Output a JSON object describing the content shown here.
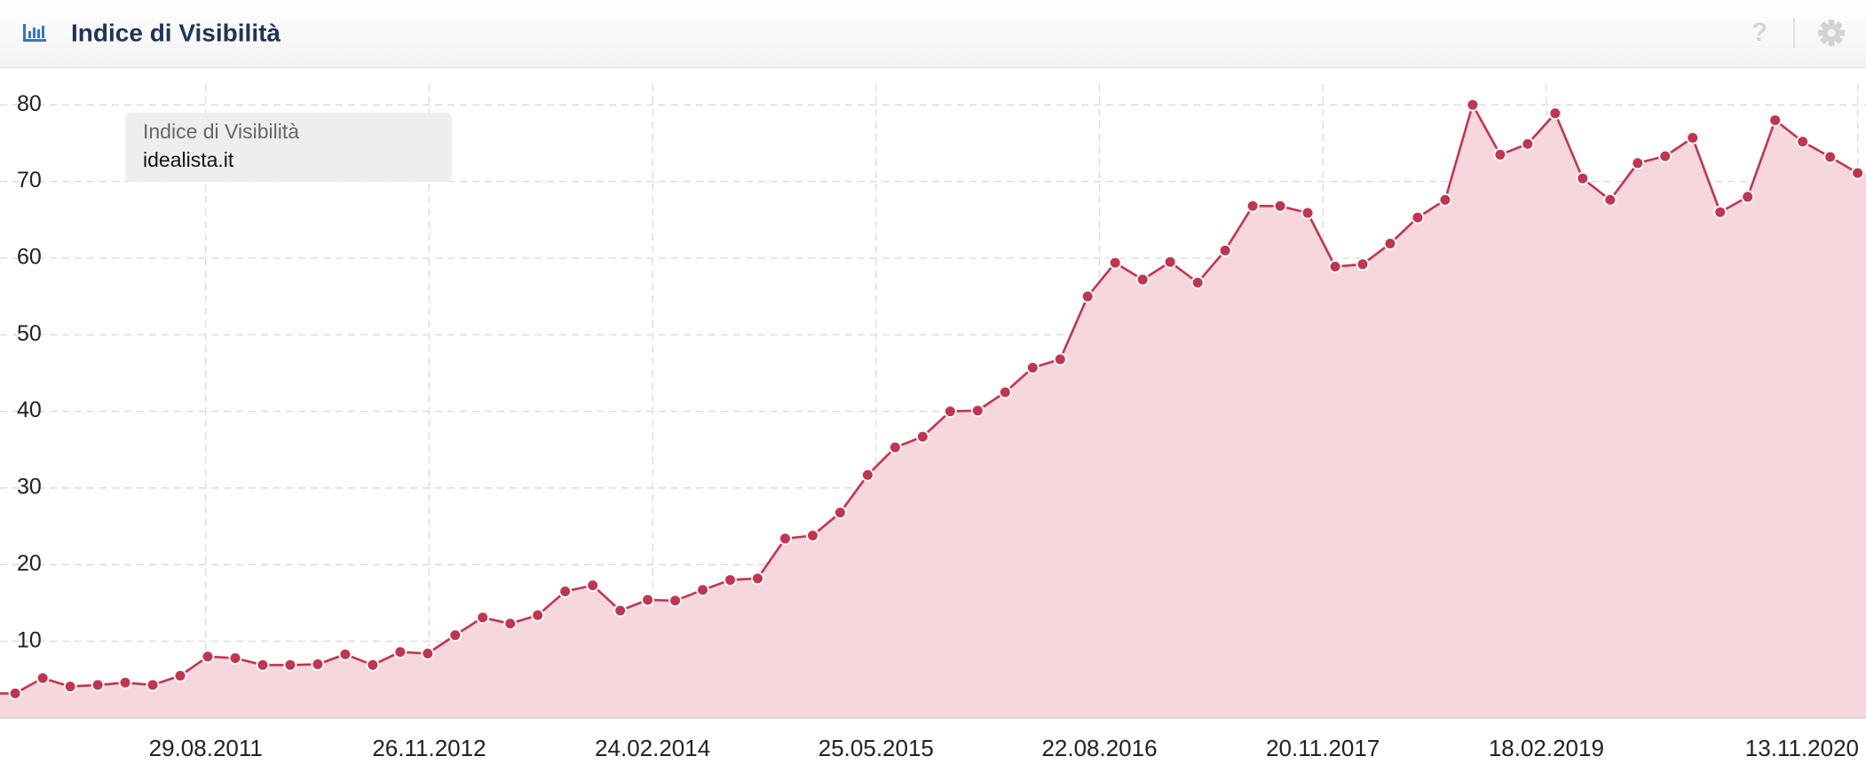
{
  "chart_data": {
    "type": "line",
    "title": "Indice di Visibilità",
    "help": "?",
    "x": [
      "06.08.2010",
      "01.10.2010",
      "26.11.2010",
      "21.01.2011",
      "18.03.2011",
      "13.05.2011",
      "08.07.2011",
      "02.09.2011",
      "28.10.2011",
      "23.12.2011",
      "17.02.2012",
      "13.04.2012",
      "08.06.2012",
      "03.08.2012",
      "28.09.2012",
      "23.11.2012",
      "18.01.2013",
      "15.03.2013",
      "10.05.2013",
      "05.07.2013",
      "30.08.2013",
      "25.10.2013",
      "20.12.2013",
      "14.02.2014",
      "11.04.2014",
      "06.06.2014",
      "01.08.2014",
      "26.09.2014",
      "21.11.2014",
      "16.01.2015",
      "13.03.2015",
      "08.05.2015",
      "03.07.2015",
      "28.08.2015",
      "23.10.2015",
      "18.12.2015",
      "12.02.2016",
      "08.04.2016",
      "03.06.2016",
      "29.07.2016",
      "23.09.2016",
      "18.11.2016",
      "13.01.2017",
      "10.03.2017",
      "05.05.2017",
      "30.06.2017",
      "25.08.2017",
      "20.10.2017",
      "15.12.2017",
      "09.02.2018",
      "06.04.2018",
      "01.06.2018",
      "27.07.2018",
      "21.09.2018",
      "16.11.2018",
      "11.01.2019",
      "08.03.2019",
      "03.05.2019",
      "28.06.2019",
      "23.08.2019",
      "18.10.2019",
      "13.12.2019",
      "07.02.2020",
      "03.04.2020",
      "29.05.2020",
      "24.07.2020",
      "18.09.2020",
      "13.11.2020"
    ],
    "series": [
      {
        "name": "idealista.it",
        "color": "#c3344f",
        "fill": "#f5d7dd",
        "values": [
          3.2,
          5.2,
          4.1,
          4.3,
          4.6,
          4.3,
          5.5,
          8,
          7.8,
          6.9,
          6.9,
          7,
          8.3,
          6.9,
          8.6,
          8.4,
          10.8,
          13.1,
          12.3,
          13.4,
          16.5,
          17.3,
          14,
          15.4,
          15.3,
          16.7,
          18,
          18.2,
          23.4,
          23.8,
          26.8,
          31.7,
          35.3,
          36.7,
          40,
          40.1,
          42.5,
          45.7,
          46.8,
          55,
          59.4,
          57.2,
          59.5,
          56.8,
          61,
          66.8,
          66.8,
          65.9,
          58.9,
          59.2,
          61.9,
          65.3,
          67.6,
          80,
          73.5,
          74.9,
          78.9,
          70.4,
          67.6,
          72.4,
          73.3,
          75.7,
          66,
          68,
          78,
          75.2,
          73.2,
          71.1
        ]
      }
    ],
    "xlim": [
      "06.07.2010",
      "30.11.2020"
    ],
    "xticks": [
      "29.08.2011",
      "26.11.2012",
      "24.02.2014",
      "25.05.2015",
      "22.08.2016",
      "20.11.2017",
      "18.02.2019",
      "13.11.2020"
    ],
    "ylim": [
      0,
      85
    ],
    "yticks": [
      10,
      20,
      30,
      40,
      50,
      60,
      70,
      80
    ],
    "grid": true
  }
}
